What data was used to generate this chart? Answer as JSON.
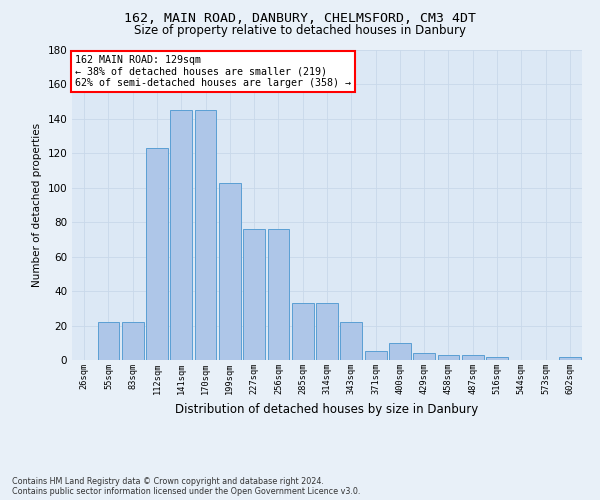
{
  "title1": "162, MAIN ROAD, DANBURY, CHELMSFORD, CM3 4DT",
  "title2": "Size of property relative to detached houses in Danbury",
  "xlabel": "Distribution of detached houses by size in Danbury",
  "ylabel": "Number of detached properties",
  "footer1": "Contains HM Land Registry data © Crown copyright and database right 2024.",
  "footer2": "Contains public sector information licensed under the Open Government Licence v3.0.",
  "bin_labels": [
    "26sqm",
    "55sqm",
    "83sqm",
    "112sqm",
    "141sqm",
    "170sqm",
    "199sqm",
    "227sqm",
    "256sqm",
    "285sqm",
    "314sqm",
    "343sqm",
    "371sqm",
    "400sqm",
    "429sqm",
    "458sqm",
    "487sqm",
    "516sqm",
    "544sqm",
    "573sqm",
    "602sqm"
  ],
  "bar_values": [
    0,
    22,
    22,
    123,
    145,
    145,
    103,
    76,
    76,
    33,
    33,
    22,
    5,
    10,
    4,
    3,
    3,
    2,
    0,
    0,
    2
  ],
  "bar_color": "#aec6e8",
  "bar_edge_color": "#5a9fd4",
  "annotation_text": "162 MAIN ROAD: 129sqm\n← 38% of detached houses are smaller (219)\n62% of semi-detached houses are larger (358) →",
  "annotation_box_color": "white",
  "annotation_box_edge_color": "red",
  "ylim": [
    0,
    180
  ],
  "yticks": [
    0,
    20,
    40,
    60,
    80,
    100,
    120,
    140,
    160,
    180
  ],
  "grid_color": "#c8d8ea",
  "bg_color": "#e8f0f8",
  "plot_bg_color": "#dce8f5",
  "title1_fontsize": 9.5,
  "title2_fontsize": 8.5,
  "ylabel_fontsize": 7.5,
  "xlabel_fontsize": 8.5,
  "xtick_fontsize": 6.2,
  "ytick_fontsize": 7.5,
  "annotation_fontsize": 7.2,
  "footer_fontsize": 5.8
}
